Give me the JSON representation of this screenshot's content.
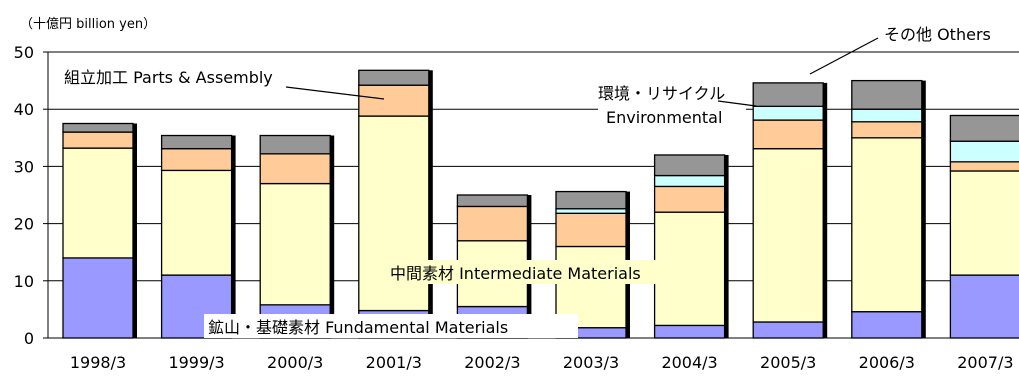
{
  "chart_data": {
    "type": "bar",
    "stacked": true,
    "unit_label": "（十億円  billion yen）",
    "categories": [
      "1998/3",
      "1999/3",
      "2000/3",
      "2001/3",
      "2002/3",
      "2003/3",
      "2004/3",
      "2005/3",
      "2006/3",
      "2007/3"
    ],
    "yticks": [
      "0",
      "10",
      "20",
      "30",
      "40",
      "50"
    ],
    "ylim": [
      0,
      50
    ],
    "grid": true,
    "series": [
      {
        "name": "鉱山・基礎素材  Fundamental Materials",
        "color": "#9999ff",
        "values": [
          14.0,
          11.0,
          5.8,
          4.8,
          5.5,
          1.8,
          2.2,
          2.8,
          4.6,
          11.0
        ]
      },
      {
        "name": "中間素材  Intermediate Materials",
        "color": "#ffffcc",
        "values": [
          19.2,
          18.3,
          21.2,
          34.0,
          11.5,
          14.2,
          19.8,
          30.3,
          30.4,
          18.2
        ]
      },
      {
        "name": "組立加工  Parts & Assembly",
        "color": "#ffcc99",
        "values": [
          2.8,
          3.8,
          5.2,
          5.4,
          6.0,
          5.8,
          4.5,
          5.0,
          2.8,
          1.6
        ]
      },
      {
        "name": "環境・リサイクル Environmental",
        "color": "#ccffff",
        "values": [
          0.0,
          0.0,
          0.0,
          0.0,
          0.0,
          0.8,
          1.9,
          2.4,
          2.2,
          3.6
        ]
      },
      {
        "name": "その他  Others",
        "color": "#969696",
        "values": [
          1.5,
          2.3,
          3.2,
          2.6,
          2.0,
          3.0,
          3.6,
          4.1,
          5.0,
          4.5
        ]
      }
    ],
    "annotations": {
      "parts_assembly": "組立加工  Parts & Assembly",
      "environmental_line1": "環境・リサイクル",
      "environmental_line2": "Environmental",
      "others": "その他  Others",
      "intermediate": "中間素材  Intermediate Materials",
      "fundamental": "鉱山・基礎素材  Fundamental Materials"
    }
  }
}
